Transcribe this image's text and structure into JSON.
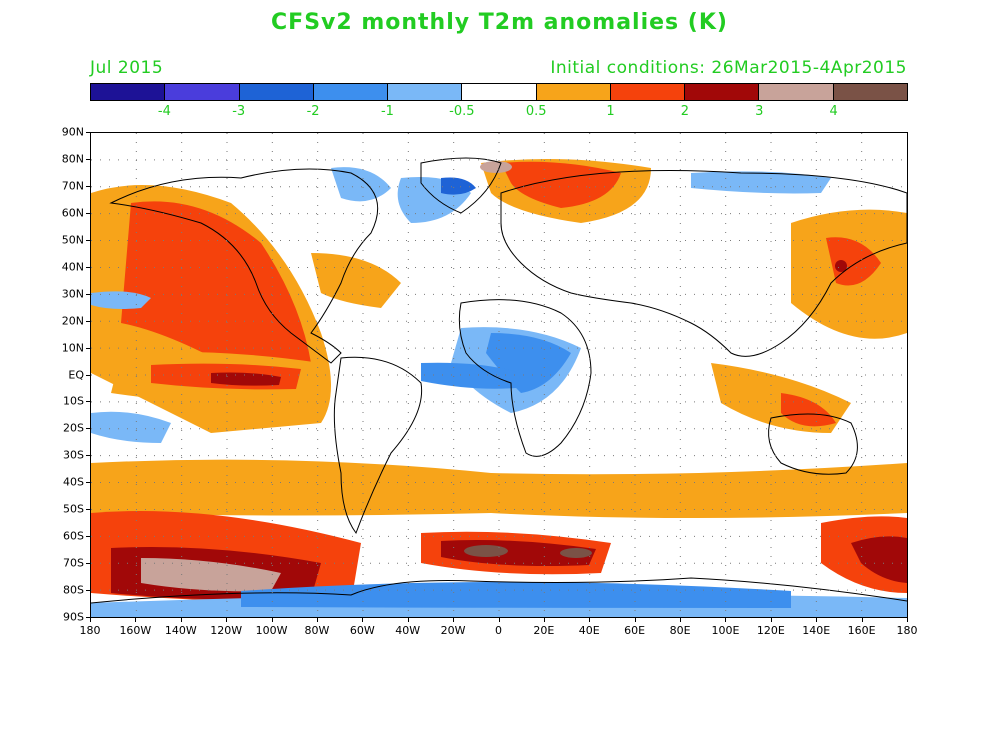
{
  "title": "CFSv2 monthly T2m anomalies (K)",
  "valid_label": "Jul 2015",
  "init_label": "Initial conditions: 26Mar2015-4Apr2015",
  "colorbar": {
    "colors": [
      "#1d1296",
      "#4a3ddc",
      "#1e63d6",
      "#3d8fee",
      "#7ab8f7",
      "#ffffff",
      "#f7a41a",
      "#f5420c",
      "#a10808",
      "#c8a39a",
      "#7a5246"
    ],
    "labels": [
      "-4",
      "-3",
      "-2",
      "-1",
      "-0.5",
      "0.5",
      "1",
      "2",
      "3",
      "4"
    ]
  },
  "lat_labels": [
    "90N",
    "80N",
    "70N",
    "60N",
    "50N",
    "40N",
    "30N",
    "20N",
    "10N",
    "EQ",
    "10S",
    "20S",
    "30S",
    "40S",
    "50S",
    "60S",
    "70S",
    "80S",
    "90S"
  ],
  "lon_labels": [
    "180",
    "160W",
    "140W",
    "120W",
    "100W",
    "80W",
    "60W",
    "40W",
    "20W",
    "0",
    "20E",
    "40E",
    "60E",
    "80E",
    "100E",
    "120E",
    "140E",
    "160E",
    "180"
  ],
  "icons": {
    "map": "global-temperature-anomaly-map"
  }
}
